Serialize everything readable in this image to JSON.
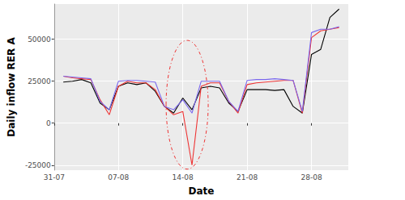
{
  "chart_data": {
    "type": "line",
    "x_label": "Date",
    "y_label": "Daily inflow RER A",
    "categories": [
      "31-07",
      null,
      null,
      null,
      null,
      null,
      null,
      "07-08",
      null,
      null,
      null,
      null,
      null,
      null,
      "14-08",
      null,
      null,
      null,
      null,
      null,
      null,
      "21-08",
      null,
      null,
      null,
      null,
      null,
      null,
      "28-08",
      null,
      null,
      null,
      null
    ],
    "series": [
      {
        "color": "#000000",
        "values": [
          null,
          24500,
          25000,
          26000,
          24000,
          12000,
          8000,
          22000,
          24000,
          23000,
          24000,
          19000,
          10000,
          6000,
          15000,
          8000,
          21000,
          22000,
          21000,
          12000,
          7000,
          20000,
          20000,
          20000,
          19500,
          20000,
          10000,
          6000,
          41000,
          44000,
          63000,
          68000,
          null
        ]
      },
      {
        "color": "#ee3333",
        "values": [
          null,
          28000,
          27000,
          26500,
          26000,
          14000,
          5000,
          22000,
          25000,
          24000,
          24000,
          20000,
          10000,
          5000,
          7000,
          -25000,
          22000,
          24000,
          24000,
          13000,
          6000,
          23000,
          24000,
          24500,
          25000,
          25500,
          25500,
          6000,
          51000,
          55000,
          56000,
          57000,
          null
        ]
      },
      {
        "color": "#7b68ee",
        "values": [
          null,
          28000,
          27500,
          27000,
          26500,
          13000,
          8000,
          25000,
          25500,
          25500,
          25000,
          24500,
          10000,
          8000,
          14000,
          6000,
          25000,
          25000,
          25000,
          13000,
          7000,
          25500,
          26000,
          26000,
          26500,
          26000,
          25500,
          7000,
          54000,
          56000,
          56000,
          57500,
          null
        ]
      }
    ],
    "ylim": [
      -28000,
      71000
    ],
    "yticks": [
      -25000,
      0,
      25000,
      50000
    ],
    "grid": true
  }
}
